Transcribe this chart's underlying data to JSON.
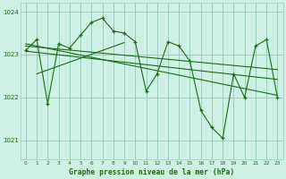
{
  "background_color": "#cff0e4",
  "grid_color": "#99ccbb",
  "line_color": "#1a6b1a",
  "title": "Graphe pression niveau de la mer (hPa)",
  "xlim": [
    -0.5,
    23.5
  ],
  "ylim": [
    1020.55,
    1024.2
  ],
  "yticks": [
    1021,
    1022,
    1023,
    1024
  ],
  "xticks": [
    0,
    1,
    2,
    3,
    4,
    5,
    6,
    7,
    8,
    9,
    10,
    11,
    12,
    13,
    14,
    15,
    16,
    17,
    18,
    19,
    20,
    21,
    22,
    23
  ],
  "hours": [
    0,
    1,
    2,
    3,
    4,
    5,
    6,
    7,
    8,
    9,
    10,
    11,
    12,
    13,
    14,
    15,
    16,
    17,
    18,
    19,
    20,
    21,
    22,
    23
  ],
  "pressure": [
    1023.1,
    1023.35,
    1021.85,
    1023.25,
    1023.15,
    1023.45,
    1023.75,
    1023.85,
    1023.55,
    1023.5,
    1023.3,
    1022.15,
    1022.55,
    1023.3,
    1023.2,
    1022.85,
    1021.7,
    1021.3,
    1021.05,
    1022.55,
    1022.0,
    1023.2,
    1023.35,
    1022.0
  ],
  "trend1_x": [
    0,
    23
  ],
  "trend1_y": [
    1023.2,
    1022.65
  ],
  "trend2_x": [
    0,
    23
  ],
  "trend2_y": [
    1023.08,
    1022.42
  ],
  "trend3_x": [
    1,
    9
  ],
  "trend3_y": [
    1022.55,
    1023.28
  ],
  "trend4_x": [
    0,
    23
  ],
  "trend4_y": [
    1023.25,
    1022.05
  ]
}
